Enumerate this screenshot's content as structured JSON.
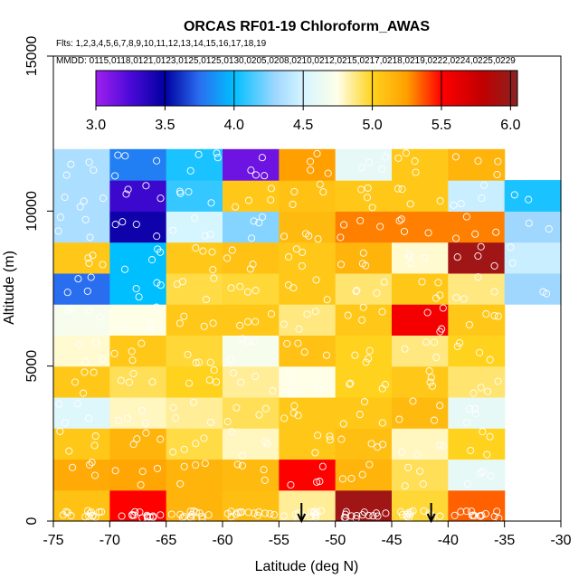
{
  "chart_data": {
    "type": "heatmap",
    "title": "ORCAS RF01-19 Chloroform_AWAS",
    "subtitle_flights": "Flts: 1,2,3,4,5,6,7,8,9,10,11,12,13,14,15,16,17,18,19",
    "subtitle_dates": "MMDD: 0115,0118,0121,0123,0125,0125,0130,0205,0208,0210,0212,0215,0217,0218,0219,0222,0224,0225,0229",
    "xlabel": "Latitude (deg N)",
    "ylabel": "Altitude (m)",
    "xlim": [
      -75,
      -30
    ],
    "ylim": [
      0,
      15000
    ],
    "x_ticks": [
      -75,
      -70,
      -65,
      -60,
      -55,
      -50,
      -45,
      -40,
      -35,
      -30
    ],
    "x_tick_labels": [
      "-75",
      "-70",
      "-65",
      "-60",
      "-55",
      "-50",
      "-45",
      "-40",
      "-35",
      "-30"
    ],
    "y_ticks": [
      0,
      5000,
      10000,
      15000
    ],
    "y_tick_labels": [
      "0",
      "5000",
      "10000",
      "15000"
    ],
    "colorbar": {
      "range": [
        3.0,
        6.05
      ],
      "ticks": [
        3.0,
        3.5,
        4.0,
        4.5,
        5.0,
        5.5,
        6.0
      ],
      "tick_labels": [
        "3.0",
        "3.5",
        "4.0",
        "4.5",
        "5.0",
        "5.5",
        "6.0"
      ],
      "stops": [
        [
          3.0,
          "#a020f0"
        ],
        [
          3.25,
          "#4b0ad8"
        ],
        [
          3.5,
          "#0000a0"
        ],
        [
          3.75,
          "#2a6ef0"
        ],
        [
          4.0,
          "#00bfff"
        ],
        [
          4.3,
          "#9fd7ff"
        ],
        [
          4.5,
          "#d5f5ff"
        ],
        [
          4.75,
          "#ffffe8"
        ],
        [
          5.0,
          "#ffd21e"
        ],
        [
          5.25,
          "#ffa000"
        ],
        [
          5.5,
          "#ff0000"
        ],
        [
          5.8,
          "#c00000"
        ],
        [
          6.05,
          "#8b2323"
        ]
      ]
    },
    "lat_bins": [
      -75,
      -70,
      -65,
      -60,
      -55,
      -50,
      -45,
      -40,
      -35,
      -30
    ],
    "alt_bin_size": 1000,
    "cells": [
      [
        -75,
        0,
        5.08
      ],
      [
        -70,
        0,
        5.5
      ],
      [
        -65,
        0,
        5.15
      ],
      [
        -60,
        0,
        5.1
      ],
      [
        -55,
        0,
        4.85
      ],
      [
        -50,
        0,
        5.95
      ],
      [
        -45,
        0,
        4.97
      ],
      [
        -40,
        0,
        5.35
      ],
      [
        -75,
        1000,
        5.2
      ],
      [
        -70,
        1000,
        5.22
      ],
      [
        -65,
        1000,
        5.15
      ],
      [
        -60,
        1000,
        5.12
      ],
      [
        -55,
        1000,
        5.5
      ],
      [
        -50,
        1000,
        5.15
      ],
      [
        -45,
        1000,
        4.93
      ],
      [
        -40,
        1000,
        4.6
      ],
      [
        -75,
        2000,
        5.05
      ],
      [
        -70,
        2000,
        5.15
      ],
      [
        -65,
        2000,
        4.95
      ],
      [
        -60,
        2000,
        4.8
      ],
      [
        -55,
        2000,
        5.05
      ],
      [
        -50,
        2000,
        5.1
      ],
      [
        -45,
        2000,
        4.8
      ],
      [
        -40,
        2000,
        5.0
      ],
      [
        -75,
        3000,
        4.55
      ],
      [
        -70,
        3000,
        4.8
      ],
      [
        -65,
        3000,
        4.85
      ],
      [
        -60,
        3000,
        4.93
      ],
      [
        -55,
        3000,
        5.05
      ],
      [
        -50,
        3000,
        5.05
      ],
      [
        -45,
        3000,
        5.12
      ],
      [
        -40,
        3000,
        4.6
      ],
      [
        -75,
        4000,
        5.05
      ],
      [
        -70,
        4000,
        4.93
      ],
      [
        -65,
        4000,
        5.0
      ],
      [
        -60,
        4000,
        4.85
      ],
      [
        -55,
        4000,
        4.75
      ],
      [
        -50,
        4000,
        5.0
      ],
      [
        -45,
        4000,
        5.05
      ],
      [
        -40,
        4000,
        4.9
      ],
      [
        -75,
        5000,
        4.78
      ],
      [
        -70,
        5000,
        5.05
      ],
      [
        -65,
        5000,
        4.97
      ],
      [
        -60,
        5000,
        4.7
      ],
      [
        -55,
        5000,
        5.08
      ],
      [
        -50,
        5000,
        5.0
      ],
      [
        -45,
        5000,
        4.88
      ],
      [
        -40,
        5000,
        5.0
      ],
      [
        -75,
        6000,
        4.7
      ],
      [
        -70,
        6000,
        4.75
      ],
      [
        -65,
        6000,
        5.05
      ],
      [
        -60,
        6000,
        5.05
      ],
      [
        -55,
        6000,
        4.88
      ],
      [
        -50,
        6000,
        5.05
      ],
      [
        -45,
        6000,
        5.55
      ],
      [
        -40,
        6000,
        5.05
      ],
      [
        -75,
        7000,
        3.75
      ],
      [
        -70,
        7000,
        4.0
      ],
      [
        -65,
        7000,
        4.95
      ],
      [
        -60,
        7000,
        4.97
      ],
      [
        -55,
        7000,
        5.05
      ],
      [
        -50,
        7000,
        4.9
      ],
      [
        -45,
        7000,
        5.05
      ],
      [
        -40,
        7000,
        4.88
      ],
      [
        -35,
        7000,
        4.3
      ],
      [
        -75,
        8000,
        5.05
      ],
      [
        -70,
        8000,
        4.0
      ],
      [
        -65,
        8000,
        5.05
      ],
      [
        -60,
        8000,
        5.08
      ],
      [
        -55,
        8000,
        5.05
      ],
      [
        -50,
        8000,
        5.15
      ],
      [
        -45,
        8000,
        4.78
      ],
      [
        -40,
        8000,
        5.95
      ],
      [
        -35,
        8000,
        4.45
      ],
      [
        -75,
        9000,
        4.35
      ],
      [
        -70,
        9000,
        3.45
      ],
      [
        -65,
        9000,
        4.5
      ],
      [
        -60,
        9000,
        4.25
      ],
      [
        -55,
        9000,
        5.12
      ],
      [
        -50,
        9000,
        5.3
      ],
      [
        -45,
        9000,
        5.3
      ],
      [
        -40,
        9000,
        5.3
      ],
      [
        -35,
        9000,
        4.3
      ],
      [
        -75,
        10000,
        4.35
      ],
      [
        -70,
        10000,
        3.3
      ],
      [
        -65,
        10000,
        4.1
      ],
      [
        -60,
        10000,
        5.05
      ],
      [
        -55,
        10000,
        5.08
      ],
      [
        -50,
        10000,
        5.05
      ],
      [
        -45,
        10000,
        5.05
      ],
      [
        -40,
        10000,
        4.45
      ],
      [
        -35,
        10000,
        4.05
      ],
      [
        -75,
        11000,
        4.35
      ],
      [
        -70,
        11000,
        3.8
      ],
      [
        -65,
        11000,
        4.05
      ],
      [
        -60,
        11000,
        3.15
      ],
      [
        -55,
        11000,
        5.25
      ],
      [
        -50,
        11000,
        4.6
      ],
      [
        -45,
        11000,
        5.05
      ],
      [
        -40,
        11000,
        5.15
      ]
    ],
    "markers": [
      {
        "lat": -53.0,
        "label": "down-arrow"
      },
      {
        "lat": -41.5,
        "label": "down-arrow"
      }
    ]
  }
}
